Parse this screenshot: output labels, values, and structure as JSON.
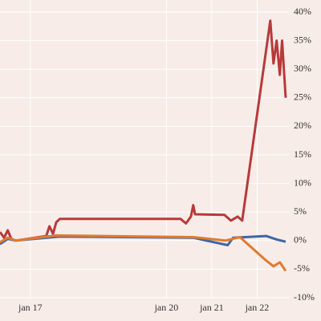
{
  "chart_data": {
    "type": "line",
    "x_unit": "day of January",
    "xlim": [
      16.33,
      22.7
    ],
    "xticks": [
      {
        "value": 17,
        "label": "jan 17"
      },
      {
        "value": 20,
        "label": "jan 20"
      },
      {
        "value": 21,
        "label": "jan 21"
      },
      {
        "value": 22,
        "label": "jan 22"
      }
    ],
    "ylim": [
      -10,
      40
    ],
    "yticks": [
      {
        "value": 40,
        "label": "40%"
      },
      {
        "value": 35,
        "label": "35%"
      },
      {
        "value": 30,
        "label": "30%"
      },
      {
        "value": 25,
        "label": "25%"
      },
      {
        "value": 20,
        "label": "20%"
      },
      {
        "value": 15,
        "label": "15%"
      },
      {
        "value": 10,
        "label": "10%"
      },
      {
        "value": 5,
        "label": "5%"
      },
      {
        "value": 0,
        "label": "0%"
      },
      {
        "value": -5,
        "label": "-5%"
      },
      {
        "value": -10,
        "label": "-10%"
      }
    ],
    "grid": true,
    "series": [
      {
        "color": "#b83a3a",
        "x": [
          16.33,
          16.42,
          16.5,
          16.58,
          16.68,
          17.35,
          17.42,
          17.5,
          17.57,
          17.65,
          20.31,
          20.43,
          20.54,
          20.59,
          20.63,
          21.28,
          21.42,
          21.57,
          21.67,
          22.29,
          22.36,
          22.43,
          22.5,
          22.55,
          22.63
        ],
        "values": [
          1.5,
          0.5,
          1.8,
          0.3,
          0,
          0.8,
          2.5,
          1.2,
          3.2,
          3.8,
          3.8,
          3,
          4.2,
          6.2,
          4.6,
          4.5,
          3.5,
          4.2,
          3.5,
          38.5,
          31,
          35,
          29,
          35,
          25
        ]
      },
      {
        "color": "#3f66a6",
        "x": [
          16.33,
          16.5,
          16.68,
          17.65,
          20.59,
          21.35,
          21.47,
          22.2,
          22.43,
          22.63
        ],
        "values": [
          -0.6,
          0.3,
          0,
          0.7,
          0.5,
          -0.8,
          0.5,
          0.8,
          0.2,
          -0.2
        ]
      },
      {
        "color": "#e07a30",
        "x": [
          16.33,
          16.5,
          16.68,
          17.57,
          20.59,
          21.3,
          21.62,
          22.2,
          22.36,
          22.5,
          22.63
        ],
        "values": [
          -0.3,
          0.5,
          0,
          0.9,
          0.6,
          0,
          0.6,
          -3.5,
          -4.5,
          -3.8,
          -5.3
        ]
      }
    ]
  }
}
